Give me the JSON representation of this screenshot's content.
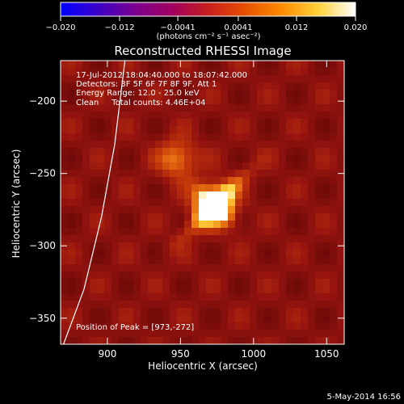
{
  "colors": {
    "background": "#000000",
    "foreground": "#ffffff",
    "colormap_stops": [
      "#0000ff",
      "#3a00c8",
      "#7a0090",
      "#a00060",
      "#c81e1e",
      "#e65000",
      "#ff8c00",
      "#ffd23c",
      "#ffffff"
    ]
  },
  "footer": {
    "date_text": "5-May-2014 16:56"
  },
  "chart_data": {
    "type": "heatmap",
    "title": "Reconstructed RHESSI Image",
    "xlabel": "Heliocentric X (arcsec)",
    "ylabel": "Heliocentric Y (arcsec)",
    "xlim": [
      868,
      1062
    ],
    "ylim": [
      -368,
      -172
    ],
    "xticks": [
      900,
      950,
      1000,
      1050
    ],
    "yticks": [
      -200,
      -250,
      -300,
      -350
    ],
    "colorbar": {
      "range": [
        -0.02,
        0.02
      ],
      "tick_values": [
        -0.02,
        -0.012,
        -0.0041,
        0.0041,
        0.012,
        0.02
      ],
      "tick_labels": [
        "−0.020",
        "−0.012",
        "−0.0041",
        "0.0041",
        "0.012",
        "0.020"
      ],
      "label": "(photons cm⁻² s⁻¹ asec⁻²)"
    },
    "annotations": [
      "17-Jul-2012 18:04:40.000 to 18:07:42.000",
      "Detectors: 3F 5F 6F 7F 8F 9F, Att 1",
      "Energy Range: 12.0 - 25.0 keV",
      "Clean     Total counts: 4.46E+04"
    ],
    "peak_label": "Position of Peak = [973,-272]",
    "peak": [
      973,
      -272
    ],
    "secondary_source": [
      948,
      -240
    ],
    "limb_points": [
      [
        912,
        -172
      ],
      [
        905,
        -230
      ],
      [
        896,
        -280
      ],
      [
        884,
        -330
      ],
      [
        870,
        -368
      ]
    ]
  }
}
